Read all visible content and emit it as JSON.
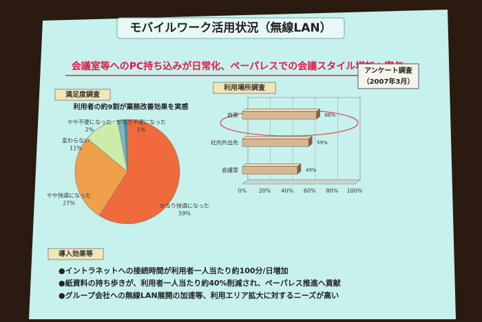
{
  "slide": {
    "title": "モバイルワーク活用状況（無線LAN）",
    "subtitle": "会議室等へのPC持ち込みが日常化、ペーパレスでの会議スタイル増加へ寄与",
    "badge": [
      "アンケート調査",
      "（2007年3月）"
    ],
    "effects": {
      "header": "導入効果等",
      "items": [
        "●イントラネットへの接続時間が利用者一人当たり約100分/日増加",
        "●紙資料の持ち歩きが、利用者一人当たり約40%削減され、ペーパレス推進へ貢献",
        "●グループ会社への無線LAN展開の加速等、利用エリア拡大に対するニーズが高い"
      ]
    }
  },
  "chart_data": [
    {
      "type": "pie",
      "title": "満足度調査",
      "subtitle": "利用者の約9割が業務改善効果を実感",
      "categories": [
        "かなり快適になった",
        "やや快適になった",
        "変わらない",
        "やや不便になった",
        "かなり不便になった"
      ],
      "values": [
        59,
        27,
        11,
        2,
        1
      ],
      "value_labels": [
        "59%",
        "27%",
        "11%",
        "2%",
        "1%"
      ],
      "colors": [
        "#f06a3c",
        "#f0a04a",
        "#ccecaa",
        "#7ab8c8",
        "#3a9aa8"
      ]
    },
    {
      "type": "hbar",
      "title": "利用場所調査",
      "categories": [
        "自席",
        "社内外出先",
        "会議室"
      ],
      "values": [
        66,
        59,
        49
      ],
      "value_labels": [
        "66%",
        "59%",
        "49%"
      ],
      "color": "#d8b890",
      "xlim": [
        0,
        100
      ],
      "xticks": [
        {
          "value": 0,
          "label": "0%"
        },
        {
          "value": 20,
          "label": "20%"
        },
        {
          "value": 40,
          "label": "40%"
        },
        {
          "value": 60,
          "label": "60%"
        },
        {
          "value": 80,
          "label": "80%"
        },
        {
          "value": 100,
          "label": "100%"
        }
      ]
    }
  ]
}
